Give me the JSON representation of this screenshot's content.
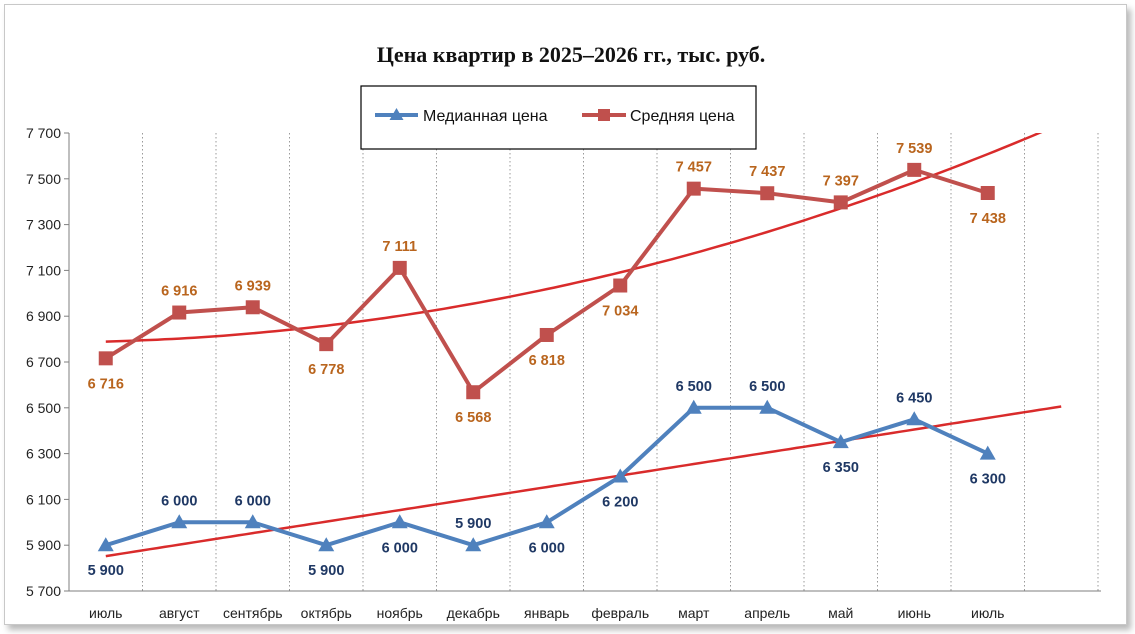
{
  "chart_data": {
    "type": "line",
    "title": "Цена квартир в 2025–2026 гг., тыс. руб.",
    "xlabel": "",
    "ylabel": "",
    "categories": [
      "июль",
      "август",
      "сентябрь",
      "октябрь",
      "ноябрь",
      "декабрь",
      "январь",
      "февраль",
      "март",
      "апрель",
      "май",
      "июнь",
      "июль"
    ],
    "ylim": [
      5700,
      7700
    ],
    "yticks": [
      5700,
      5900,
      6100,
      6300,
      6500,
      6700,
      6900,
      7100,
      7300,
      7500,
      7700
    ],
    "ytick_labels": [
      "5 700",
      "5 900",
      "6 100",
      "6 300",
      "6 500",
      "6 700",
      "6 900",
      "7 100",
      "7 300",
      "7 500",
      "7 700"
    ],
    "grid": "vertical-dotted",
    "legend": {
      "position": "top-center"
    },
    "series": [
      {
        "name": "Медианная цена",
        "marker": "triangle",
        "color": "#4f81bd",
        "label_color": "#1f3864",
        "values": [
          5900,
          6000,
          6000,
          5900,
          6000,
          5900,
          6000,
          6200,
          6500,
          6500,
          6350,
          6450,
          6300
        ],
        "labels": [
          "5 900",
          "6 000",
          "6 000",
          "5 900",
          "6 000",
          "5 900",
          "6 000",
          "6 200",
          "6 500",
          "6 500",
          "6 350",
          "6 450",
          "6 300"
        ],
        "label_pos": [
          "below",
          "above",
          "above",
          "below",
          "below",
          "above",
          "below",
          "below",
          "above",
          "above",
          "below",
          "above",
          "below"
        ],
        "trendline": {
          "type": "linear",
          "color": "#d92b2b"
        }
      },
      {
        "name": "Средняя цена",
        "marker": "square",
        "color": "#c0504d",
        "label_color": "#b9651e",
        "values": [
          6716,
          6916,
          6939,
          6778,
          7111,
          6568,
          6818,
          7034,
          7457,
          7437,
          7397,
          7539,
          7438
        ],
        "labels": [
          "6 716",
          "6 916",
          "6 939",
          "6 778",
          "7 111",
          "6 568",
          "6 818",
          "7 034",
          "7 457",
          "7 437",
          "7 397",
          "7 539",
          "7 438"
        ],
        "label_pos": [
          "below",
          "above",
          "above",
          "below",
          "above",
          "below",
          "below",
          "below",
          "above",
          "above",
          "above",
          "above",
          "below"
        ],
        "trendline": {
          "type": "polynomial",
          "color": "#d92b2b"
        }
      }
    ]
  }
}
